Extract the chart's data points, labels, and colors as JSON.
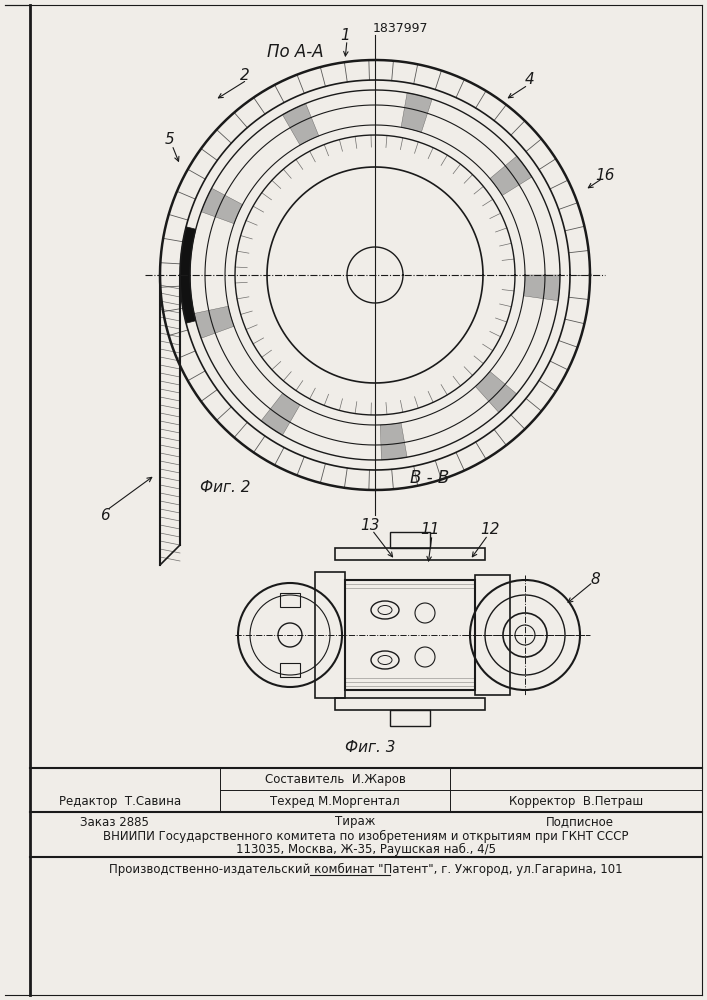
{
  "patent_number": "1837997",
  "fig2_label": "По А-А",
  "fig2_caption": "Фиг. 2",
  "fig3_label": "В - В",
  "fig3_caption": "Фиг. 3",
  "bg_color": "#f0ede8",
  "line_color": "#1a1a1a",
  "footer": {
    "editor": "Редактор  Т.Савина",
    "compiler_label": "Составитель  И.Жаров",
    "techred_label": "Техред М.Моргентал",
    "corrector": "Корректор  В.Петраш",
    "order": "Заказ 2885",
    "tirazh": "Тираж",
    "podpisnoe": "Подписное",
    "vniiipi_line1": "ВНИИПИ Государственного комитета по изобретениям и открытиям при ГКНТ СССР",
    "vniiipi_line2": "113035, Москва, Ж-35, Раушская наб., 4/5",
    "publisher": "Производственно-издательский комбинат \"Патент\", г. Ужгород, ул.Гагарина, 101"
  }
}
